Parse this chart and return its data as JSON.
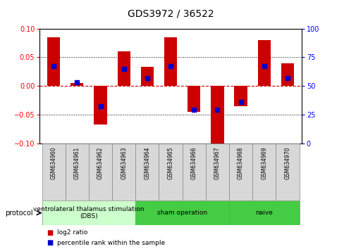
{
  "title": "GDS3972 / 36522",
  "samples": [
    "GSM634960",
    "GSM634961",
    "GSM634962",
    "GSM634963",
    "GSM634964",
    "GSM634965",
    "GSM634966",
    "GSM634967",
    "GSM634968",
    "GSM634969",
    "GSM634970"
  ],
  "log2_ratio": [
    0.085,
    0.005,
    -0.068,
    0.06,
    0.033,
    0.085,
    -0.045,
    -0.1,
    -0.035,
    0.08,
    0.04
  ],
  "percentile_rank": [
    67,
    53,
    32,
    65,
    57,
    67,
    29,
    29,
    36,
    67,
    57
  ],
  "ylim_left": [
    -0.1,
    0.1
  ],
  "ylim_right": [
    0,
    100
  ],
  "yticks_left": [
    -0.1,
    -0.05,
    0,
    0.05,
    0.1
  ],
  "yticks_right": [
    0,
    25,
    50,
    75,
    100
  ],
  "bar_color": "#cc0000",
  "dot_color": "#0000cc",
  "zero_line_color": "#cc0000",
  "protocol_groups": [
    {
      "label": "ventrolateral thalamus stimulation\n(DBS)",
      "start": 0,
      "end": 4,
      "color": "#ccffcc"
    },
    {
      "label": "sham operation",
      "start": 4,
      "end": 8,
      "color": "#44cc44"
    },
    {
      "label": "naive",
      "start": 8,
      "end": 11,
      "color": "#44cc44"
    }
  ],
  "protocol_label": "protocol",
  "legend_items": [
    {
      "label": "log2 ratio",
      "color": "#cc0000"
    },
    {
      "label": "percentile rank within the sample",
      "color": "#0000cc"
    }
  ]
}
